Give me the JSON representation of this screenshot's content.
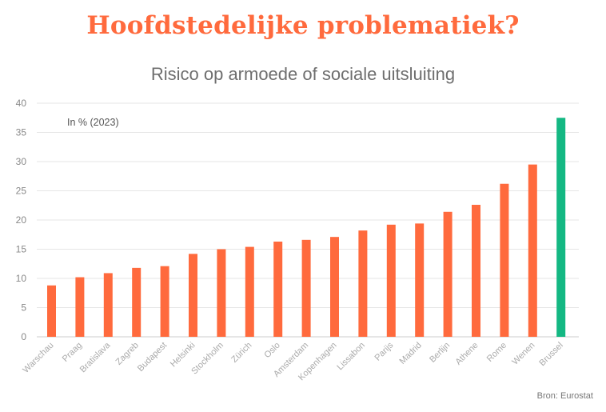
{
  "headline": "Hoofdstedelijke problematiek?",
  "source": "Bron: Eurostat",
  "colors": {
    "default_bar": "#ff6a3d",
    "highlight_bar": "#14b883",
    "grid": "#e6e6e6"
  },
  "chart_data": {
    "type": "bar",
    "title": "Risico op armoede of sociale uitsluiting",
    "unit_note": "In % (2023)",
    "categories": [
      "Warschau",
      "Praag",
      "Bratislava",
      "Zagreb",
      "Budapest",
      "Helsinki",
      "Stockholm",
      "Zürich",
      "Oslo",
      "Amsterdam",
      "Kopenhagen",
      "Lissabon",
      "Parijs",
      "Madrid",
      "Berlijn",
      "Athene",
      "Rome",
      "Wenen",
      "Brussel"
    ],
    "values": [
      8.8,
      10.2,
      10.9,
      11.8,
      12.1,
      14.2,
      15.0,
      15.4,
      16.3,
      16.6,
      17.1,
      18.2,
      19.2,
      19.4,
      21.4,
      22.6,
      26.2,
      29.5,
      37.5
    ],
    "highlight": "Brussel",
    "ylim": [
      0,
      40
    ],
    "yticks": [
      0,
      5,
      10,
      15,
      20,
      25,
      30,
      35,
      40
    ],
    "grid": true
  }
}
